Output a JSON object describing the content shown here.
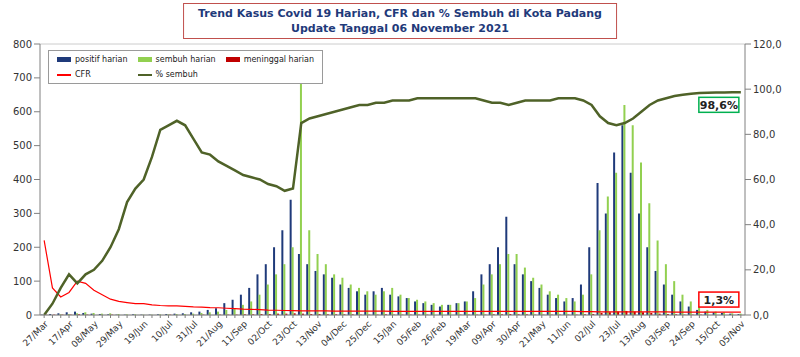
{
  "chart_data": {
    "type": "combo",
    "title": "Trend Kasus Covid 19 Harian, CFR dan % Sembuh di Kota Padang",
    "subtitle": "Update Tanggal  06 November 2021",
    "categories": [
      "27/Mar",
      null,
      null,
      "17/Apr",
      null,
      null,
      "08/May",
      null,
      null,
      "29/May",
      null,
      null,
      "19/Jun",
      null,
      null,
      "10/Jul",
      null,
      null,
      "31/Jul",
      null,
      null,
      "21/Aug",
      null,
      null,
      "11/Sep",
      null,
      null,
      "02/Oct",
      null,
      null,
      "23/Oct",
      null,
      null,
      "13/Nov",
      null,
      null,
      "04/Dec",
      null,
      null,
      "25/Dec",
      null,
      null,
      "15/Jan",
      null,
      null,
      "05/Feb",
      null,
      null,
      "26/Feb",
      null,
      null,
      "19/Mar",
      null,
      null,
      "09/Apr",
      null,
      null,
      "30/Apr",
      null,
      null,
      "21/May",
      null,
      null,
      "11/Jun",
      null,
      null,
      "02/Jul",
      null,
      null,
      "23/Jul",
      null,
      null,
      "13/Aug",
      null,
      null,
      "03/Sep",
      null,
      null,
      "24/Sep",
      null,
      null,
      "15/Oct",
      null,
      null,
      "05/Nov"
    ],
    "series": [
      {
        "name": "positif harian",
        "type": "bar",
        "color": "#1f3a7a",
        "values": [
          1,
          3,
          5,
          8,
          10,
          6,
          4,
          3,
          2,
          1,
          1,
          2,
          1,
          1,
          2,
          3,
          4,
          5,
          8,
          10,
          15,
          20,
          35,
          45,
          60,
          80,
          120,
          150,
          200,
          250,
          340,
          180,
          150,
          130,
          120,
          110,
          90,
          80,
          70,
          60,
          70,
          80,
          60,
          55,
          50,
          40,
          35,
          30,
          25,
          30,
          35,
          40,
          70,
          120,
          150,
          200,
          290,
          150,
          120,
          100,
          80,
          60,
          50,
          40,
          50,
          90,
          200,
          390,
          300,
          480,
          560,
          420,
          300,
          200,
          130,
          90,
          60,
          40,
          25,
          15,
          10,
          8,
          6,
          4,
          3
        ]
      },
      {
        "name": "sembuh harian",
        "type": "bar",
        "color": "#92d050",
        "values": [
          0,
          0,
          2,
          3,
          5,
          8,
          6,
          4,
          5,
          3,
          2,
          2,
          1,
          1,
          2,
          2,
          3,
          3,
          4,
          6,
          8,
          10,
          15,
          20,
          30,
          40,
          60,
          90,
          120,
          150,
          200,
          740,
          250,
          180,
          150,
          120,
          110,
          90,
          80,
          70,
          60,
          70,
          80,
          60,
          50,
          45,
          40,
          35,
          30,
          30,
          35,
          40,
          50,
          90,
          120,
          150,
          180,
          180,
          140,
          110,
          90,
          70,
          60,
          50,
          40,
          60,
          120,
          250,
          350,
          420,
          620,
          560,
          450,
          330,
          220,
          150,
          100,
          60,
          40,
          25,
          15,
          10,
          8,
          5,
          4
        ]
      },
      {
        "name": "meninggal harian",
        "type": "bar",
        "color": "#c00000",
        "values": [
          1,
          1,
          1,
          1,
          2,
          1,
          0,
          0,
          1,
          0,
          0,
          0,
          0,
          0,
          0,
          1,
          0,
          0,
          0,
          1,
          0,
          1,
          1,
          1,
          2,
          2,
          3,
          3,
          4,
          4,
          5,
          4,
          3,
          3,
          2,
          2,
          2,
          2,
          1,
          1,
          1,
          2,
          1,
          1,
          1,
          1,
          1,
          0,
          0,
          0,
          1,
          1,
          1,
          1,
          2,
          2,
          3,
          2,
          2,
          1,
          1,
          1,
          1,
          1,
          1,
          2,
          3,
          6,
          8,
          10,
          12,
          10,
          8,
          6,
          4,
          3,
          2,
          1,
          1,
          1,
          0,
          0,
          0,
          0,
          0
        ]
      },
      {
        "name": "CFR",
        "type": "line",
        "axis": "y2",
        "color": "#ff0000",
        "values": [
          33,
          12,
          8,
          10,
          15,
          14,
          11,
          9,
          7,
          6,
          5.5,
          5,
          5,
          4.5,
          4.2,
          4,
          4,
          3.8,
          3.6,
          3.5,
          3.3,
          3.2,
          3,
          2.8,
          2.6,
          2.5,
          2.4,
          2.2,
          2.1,
          2,
          1.9,
          1.8,
          1.8,
          1.8,
          1.8,
          1.7,
          1.7,
          1.7,
          1.7,
          1.7,
          1.7,
          1.7,
          1.6,
          1.6,
          1.6,
          1.6,
          1.6,
          1.6,
          1.6,
          1.6,
          1.6,
          1.6,
          1.6,
          1.6,
          1.6,
          1.6,
          1.6,
          1.6,
          1.6,
          1.6,
          1.6,
          1.6,
          1.6,
          1.6,
          1.6,
          1.5,
          1.5,
          1.4,
          1.4,
          1.4,
          1.4,
          1.4,
          1.4,
          1.4,
          1.4,
          1.4,
          1.3,
          1.3,
          1.3,
          1.3,
          1.3,
          1.3,
          1.3,
          1.3,
          1.3
        ]
      },
      {
        "name": "% sembuh",
        "type": "line",
        "axis": "y2",
        "color": "#4f6228",
        "values": [
          0,
          5,
          12,
          18,
          14,
          18,
          20,
          24,
          30,
          38,
          50,
          56,
          60,
          70,
          82,
          84,
          86,
          84,
          78,
          72,
          71,
          68,
          66,
          64,
          62,
          61,
          60,
          58,
          57,
          55,
          56,
          85,
          87,
          88,
          89,
          90,
          91,
          92,
          93,
          93,
          94,
          94,
          95,
          95,
          95,
          96,
          96,
          96,
          96,
          96,
          96,
          96,
          96,
          95,
          94,
          94,
          93,
          94,
          95,
          95,
          95,
          95,
          96,
          96,
          96,
          95,
          93,
          88,
          85,
          84,
          85,
          87,
          90,
          93,
          95,
          96,
          97,
          97.5,
          98,
          98.3,
          98.4,
          98.5,
          98.5,
          98.6,
          98.6
        ]
      }
    ],
    "ylim": [
      0,
      800
    ],
    "yticks": [
      0,
      100,
      200,
      300,
      400,
      500,
      600,
      700,
      800
    ],
    "y2lim": [
      0,
      120
    ],
    "y2ticks": [
      {
        "value": 0,
        "label": "0,0"
      },
      {
        "value": 20,
        "label": "20,0"
      },
      {
        "value": 40,
        "label": "40,0"
      },
      {
        "value": 60,
        "label": "60,0"
      },
      {
        "value": 80,
        "label": "80,0"
      },
      {
        "value": 100,
        "label": "100,0"
      },
      {
        "value": 120,
        "label": "120,0"
      }
    ],
    "annotations": [
      {
        "text": "98,6%",
        "value": 98.6,
        "category": "05/Nov",
        "axis": "y2",
        "color": "#00b050"
      },
      {
        "text": "1,3%",
        "value": 1.3,
        "category": "05/Nov",
        "axis": "y2",
        "color": "#ff0000"
      }
    ],
    "grid": true,
    "legend": "upper left"
  }
}
